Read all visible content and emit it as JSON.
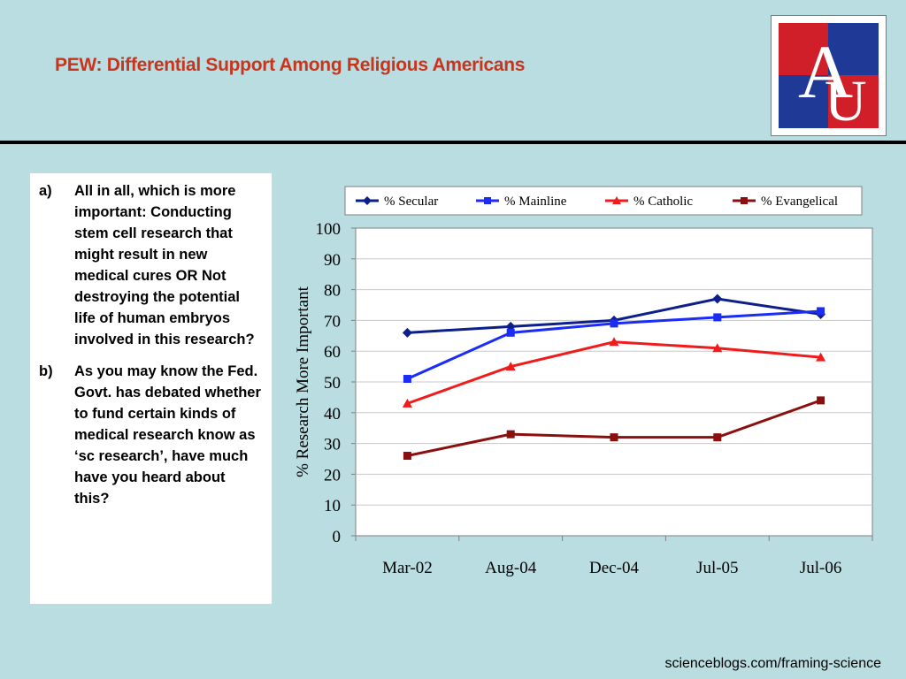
{
  "slide": {
    "title": "PEW: Differential Support Among Religious Americans",
    "footer": "scienceblogs.com/framing-science",
    "logo_text": "AU"
  },
  "questions": [
    {
      "marker": "a)",
      "text": "All in all, which is more important: Conducting stem cell research that might result in new medical cures OR Not destroying the potential life of human embryos involved in this research?"
    },
    {
      "marker": "b)",
      "text": "As you may know the Fed. Govt. has debated whether to fund certain kinds of medical research know as ‘sc research’, have much have you heard about this?"
    }
  ],
  "colors": {
    "background": "#b9dde1",
    "title": "#c8341c",
    "secular": "#0c1f8a",
    "mainline": "#1a2cf5",
    "catholic": "#ee1c1c",
    "evangelical": "#8a0f0f",
    "logo_red": "#d11f2a",
    "logo_blue": "#1f3a96"
  },
  "chart_data": {
    "type": "line",
    "categories": [
      "Mar-02",
      "Aug-04",
      "Dec-04",
      "Jul-05",
      "Jul-06"
    ],
    "ylabel": "% Research More Important",
    "xlabel": "",
    "ylim": [
      0,
      100
    ],
    "yticks": [
      0,
      10,
      20,
      30,
      40,
      50,
      60,
      70,
      80,
      90,
      100
    ],
    "grid": true,
    "legend_position": "top",
    "series": [
      {
        "name": "% Secular",
        "marker": "diamond",
        "color_key": "secular",
        "values": [
          66,
          68,
          70,
          77,
          72
        ]
      },
      {
        "name": "% Mainline",
        "marker": "square",
        "color_key": "mainline",
        "values": [
          51,
          66,
          69,
          71,
          73
        ]
      },
      {
        "name": "% Catholic",
        "marker": "triangle",
        "color_key": "catholic",
        "values": [
          43,
          55,
          63,
          61,
          58
        ]
      },
      {
        "name": "% Evangelical",
        "marker": "square",
        "color_key": "evangelical",
        "values": [
          26,
          33,
          32,
          32,
          44
        ]
      }
    ]
  }
}
